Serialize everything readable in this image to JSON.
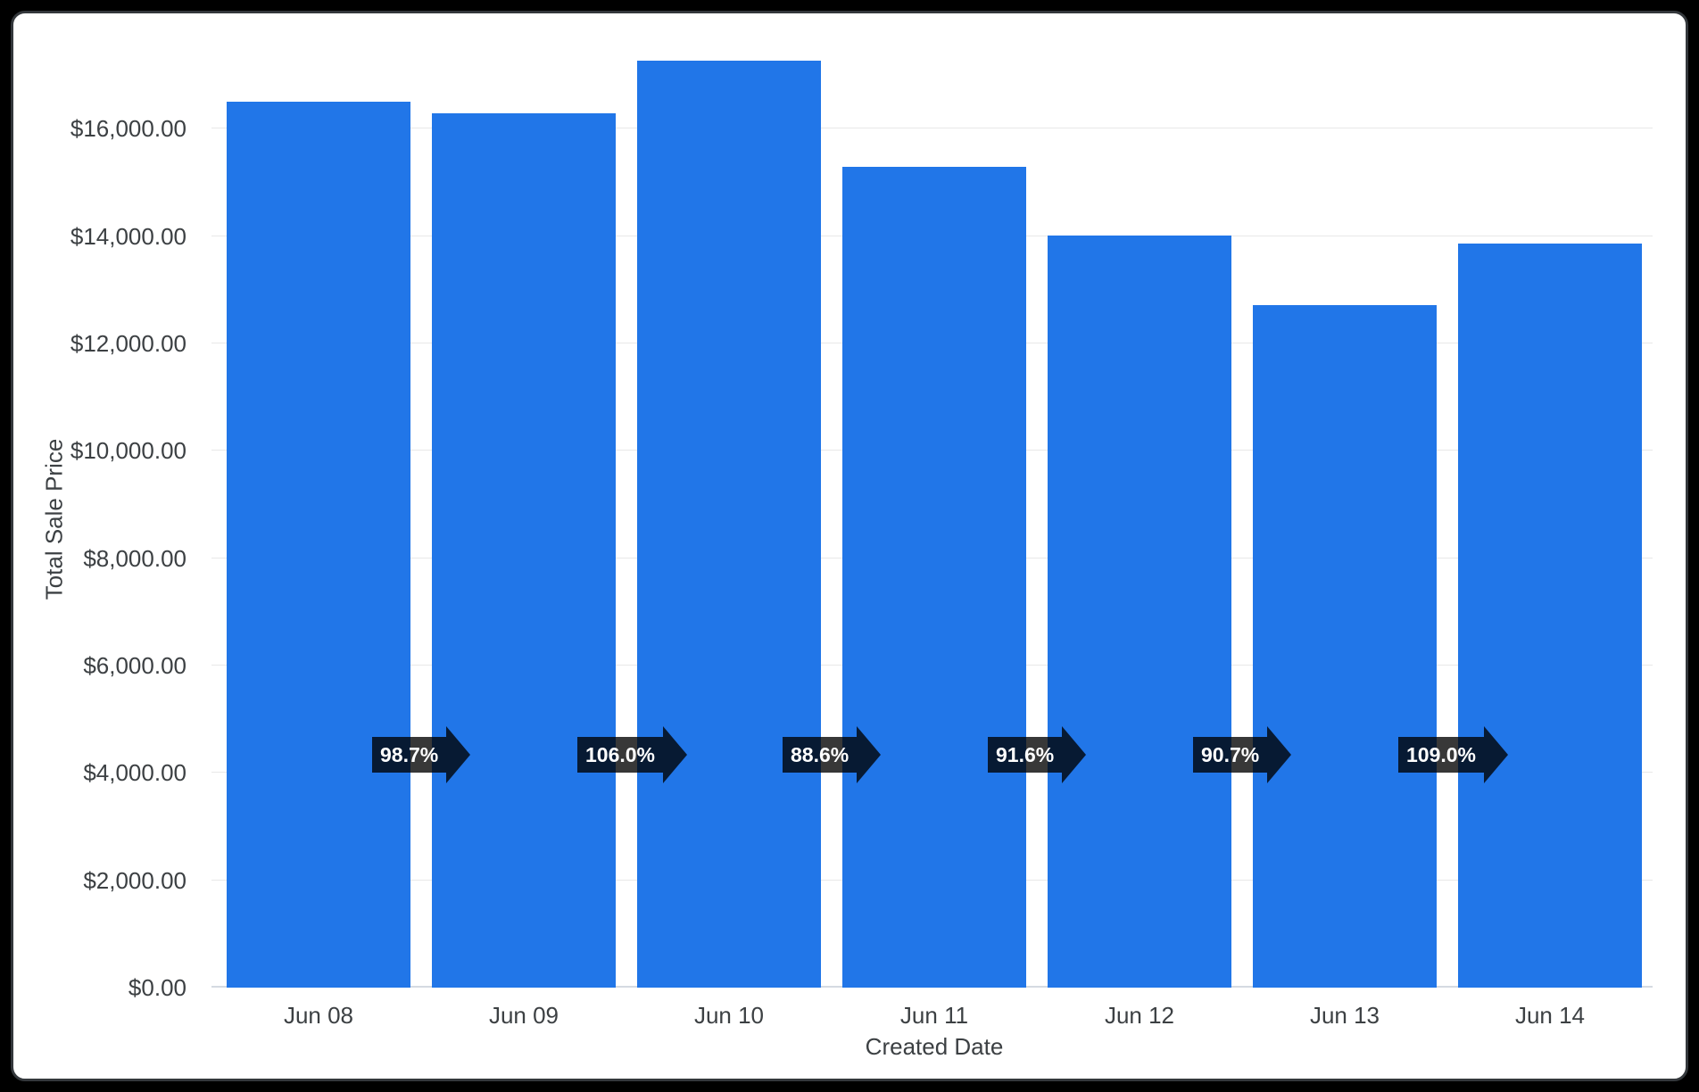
{
  "chart_data": {
    "type": "bar",
    "title": "",
    "xlabel": "Created Date",
    "ylabel": "Total Sale Price",
    "categories": [
      "Jun 08",
      "Jun 09",
      "Jun 10",
      "Jun 11",
      "Jun 12",
      "Jun 13",
      "Jun 14"
    ],
    "values": [
      16500,
      16290,
      17265,
      15295,
      14010,
      12710,
      13855
    ],
    "value_unit": "USD",
    "pct_of_previous": [
      "98.7%",
      "106.0%",
      "88.6%",
      "91.6%",
      "90.7%",
      "109.0%"
    ],
    "y_ticks": [
      {
        "value": 0,
        "label": "$0.00"
      },
      {
        "value": 2000,
        "label": "$2,000.00"
      },
      {
        "value": 4000,
        "label": "$4,000.00"
      },
      {
        "value": 6000,
        "label": "$6,000.00"
      },
      {
        "value": 8000,
        "label": "$8,000.00"
      },
      {
        "value": 10000,
        "label": "$10,000.00"
      },
      {
        "value": 12000,
        "label": "$12,000.00"
      },
      {
        "value": 14000,
        "label": "$14,000.00"
      },
      {
        "value": 16000,
        "label": "$16,000.00"
      }
    ],
    "ylim": [
      0,
      17450
    ],
    "grid": "horizontal",
    "legend": "none",
    "colors": {
      "bar": "#2176e8",
      "grid_line": "#e8e8e8",
      "zero_line": "#d5dae2",
      "axis_text": "#3c4043",
      "badge_bg": "rgba(0,0,0,0.78)",
      "badge_text": "#ffffff",
      "panel_bg": "#ffffff",
      "panel_border": "#34383c",
      "canvas_bg": "#000000"
    }
  }
}
